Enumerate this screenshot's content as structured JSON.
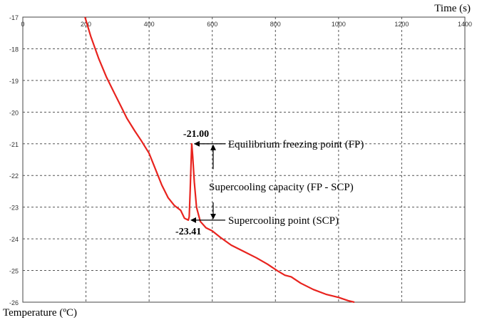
{
  "chart_data": {
    "type": "line",
    "xlabel": "Time (s)",
    "ylabel": "Temperature (ºC)",
    "xlim": [
      0,
      1400
    ],
    "ylim": [
      -26,
      -17
    ],
    "x_ticks": [
      0,
      200,
      400,
      600,
      800,
      1000,
      1200,
      1400
    ],
    "y_ticks": [
      -17,
      -18,
      -19,
      -20,
      -21,
      -22,
      -23,
      -24,
      -25,
      -26
    ],
    "x_axis_position": "top",
    "grid": true,
    "series": [
      {
        "color": "#e8231e",
        "points": [
          [
            197,
            -17.0
          ],
          [
            215,
            -17.6
          ],
          [
            240,
            -18.3
          ],
          [
            265,
            -18.9
          ],
          [
            290,
            -19.4
          ],
          [
            315,
            -19.9
          ],
          [
            330,
            -20.2
          ],
          [
            355,
            -20.6
          ],
          [
            375,
            -20.9
          ],
          [
            400,
            -21.3
          ],
          [
            420,
            -21.8
          ],
          [
            440,
            -22.3
          ],
          [
            460,
            -22.7
          ],
          [
            480,
            -22.95
          ],
          [
            500,
            -23.1
          ],
          [
            512,
            -23.35
          ],
          [
            524,
            -23.41
          ],
          [
            527,
            -23.3
          ],
          [
            530,
            -22.5
          ],
          [
            533,
            -21.6
          ],
          [
            535,
            -21.0
          ],
          [
            538,
            -21.4
          ],
          [
            543,
            -22.2
          ],
          [
            550,
            -23.0
          ],
          [
            562,
            -23.45
          ],
          [
            580,
            -23.65
          ],
          [
            600,
            -23.75
          ],
          [
            625,
            -23.95
          ],
          [
            660,
            -24.2
          ],
          [
            700,
            -24.4
          ],
          [
            740,
            -24.6
          ],
          [
            775,
            -24.8
          ],
          [
            805,
            -25.0
          ],
          [
            830,
            -25.15
          ],
          [
            850,
            -25.2
          ],
          [
            880,
            -25.4
          ],
          [
            920,
            -25.6
          ],
          [
            960,
            -25.75
          ],
          [
            1000,
            -25.85
          ],
          [
            1030,
            -25.95
          ],
          [
            1050,
            -26.0
          ]
        ]
      }
    ],
    "annotations": {
      "fp_value": "-21.00",
      "scp_value": "-23.41",
      "fp_label": "Equilibrium freezing point (FP)",
      "capacity_label": "Supercooling capacity (FP - SCP)",
      "scp_label": "Supercooling point (SCP)",
      "fp": {
        "x": 535,
        "y": -21.0
      },
      "scp": {
        "x": 524,
        "y": -23.41
      }
    }
  }
}
